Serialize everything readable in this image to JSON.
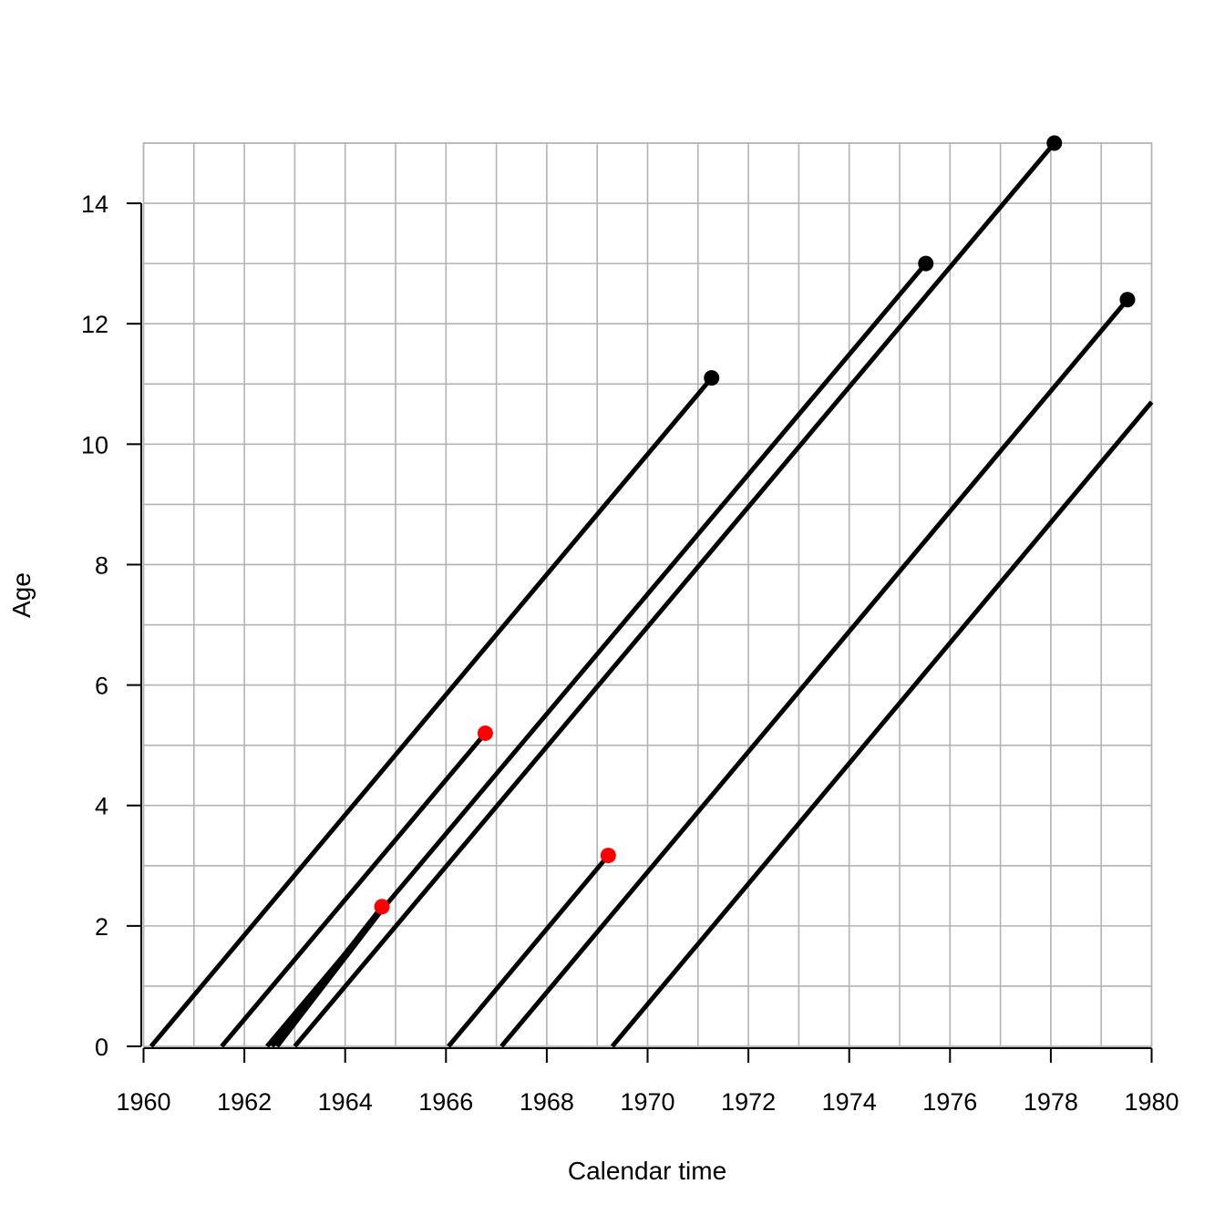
{
  "chart_data": {
    "type": "line",
    "title": "",
    "xlabel": "Calendar time",
    "ylabel": "Age",
    "xlim": [
      1960,
      1980
    ],
    "ylim": [
      0,
      15
    ],
    "x_ticks": [
      "1960",
      "1962",
      "1964",
      "1966",
      "1968",
      "1970",
      "1972",
      "1974",
      "1976",
      "1978",
      "1980"
    ],
    "y_ticks": [
      "0",
      "2",
      "4",
      "6",
      "8",
      "10",
      "12",
      "14"
    ],
    "grid": true,
    "grid_x_step": 1,
    "grid_y_step": 1,
    "lines": [
      {
        "x0": 1960.15,
        "y0": 0,
        "x1": 1971.27,
        "y1": 11.1,
        "end_marker": "black"
      },
      {
        "x0": 1961.55,
        "y0": 0,
        "x1": 1966.78,
        "y1": 5.2,
        "end_marker": "red"
      },
      {
        "x0": 1962.45,
        "y0": 0,
        "x1": 1975.52,
        "y1": 13.0,
        "end_marker": "black"
      },
      {
        "x0": 1962.55,
        "y0": 0,
        "x1": 1964.73,
        "y1": 2.32,
        "end_marker": "red"
      },
      {
        "x0": 1962.65,
        "y0": 0,
        "x1": 1964.78,
        "y1": 2.32,
        "end_marker": null
      },
      {
        "x0": 1963.0,
        "y0": 0,
        "x1": 1978.07,
        "y1": 15.0,
        "end_marker": "black"
      },
      {
        "x0": 1966.05,
        "y0": 0,
        "x1": 1969.22,
        "y1": 3.17,
        "end_marker": "red"
      },
      {
        "x0": 1967.1,
        "y0": 0,
        "x1": 1979.52,
        "y1": 12.4,
        "end_marker": "black"
      },
      {
        "x0": 1969.3,
        "y0": 0,
        "x1": 1980.0,
        "y1": 10.7,
        "end_marker": null
      }
    ]
  },
  "colors": {
    "line": "#000000",
    "event_marker": "#ff0000",
    "censor_marker": "#000000",
    "grid": "#b3b3b3",
    "axis": "#000000",
    "box": "#b3b3b3"
  }
}
